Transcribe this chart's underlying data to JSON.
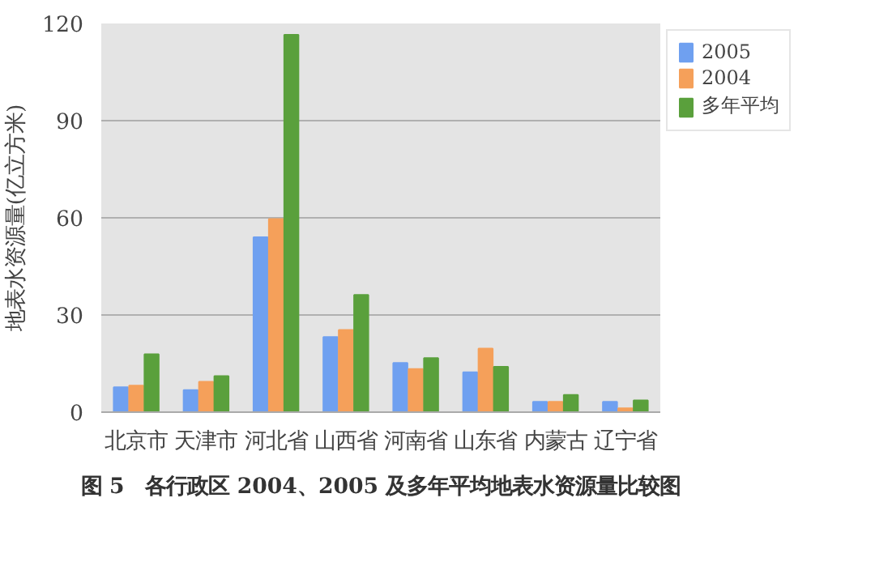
{
  "chart_data": {
    "type": "bar",
    "annotations": [
      "图 5　各行政区 2004、2005 及多年平均地表水资源量比较图"
    ],
    "ylabel": "地表水资源量(亿立方米)",
    "categories": [
      "北京市",
      "天津市",
      "河北省",
      "山西省",
      "河南省",
      "山东省",
      "内蒙古",
      "辽宁省"
    ],
    "series": [
      {
        "name": "2005",
        "color": "#6fa0f0",
        "values": [
          7.7,
          6.8,
          54,
          23.2,
          15.2,
          12.3,
          3.2,
          3.2
        ]
      },
      {
        "name": "2004",
        "color": "#f5a05a",
        "values": [
          8.2,
          9.4,
          59.6,
          25.4,
          13.3,
          19.6,
          3.2,
          1.2
        ]
      },
      {
        "name": "多年平均",
        "color": "#5aa03c",
        "values": [
          17.9,
          11.1,
          116.5,
          36.2,
          16.7,
          14,
          5.3,
          3.6
        ]
      }
    ],
    "ylim": [
      0,
      120
    ],
    "yticks": [
      0,
      30,
      60,
      90,
      120
    ],
    "grid": "y",
    "legend": "right"
  }
}
